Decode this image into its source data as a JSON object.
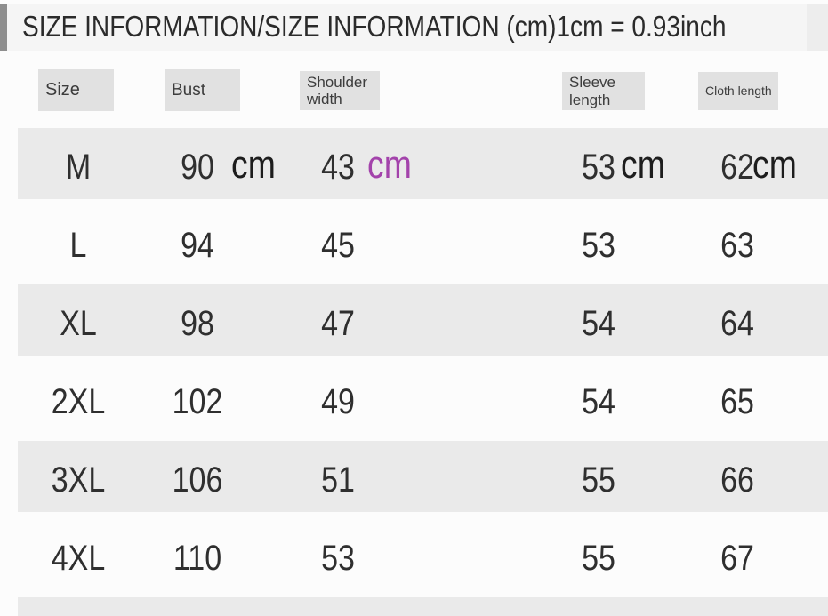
{
  "title": "SIZE INFORMATION/SIZE INFORMATION (cm)1cm = 0.93inch",
  "colors": {
    "accent_cm": "#a343ab",
    "row_stripe": "#eaeaea",
    "header_box": "#e1e1e1",
    "title_bar": "#f5f5f5"
  },
  "row_m_units": {
    "bust": "cm",
    "shoulder": "cm",
    "sleeve": "cm",
    "cloth": "cm"
  },
  "chart_data": {
    "type": "table",
    "title": "SIZE INFORMATION/SIZE INFORMATION (cm)1cm = 0.93inch",
    "unit": "cm",
    "unit_conversion": "1cm = 0.93inch",
    "columns": [
      "Size",
      "Bust",
      "Shoulder width",
      "Sleeve length",
      "Cloth length"
    ],
    "rows": [
      [
        "M",
        90,
        43,
        53,
        62
      ],
      [
        "L",
        94,
        45,
        53,
        63
      ],
      [
        "XL",
        98,
        47,
        54,
        64
      ],
      [
        "2XL",
        102,
        49,
        54,
        65
      ],
      [
        "3XL",
        106,
        51,
        55,
        66
      ],
      [
        "4XL",
        110,
        53,
        55,
        67
      ]
    ]
  }
}
